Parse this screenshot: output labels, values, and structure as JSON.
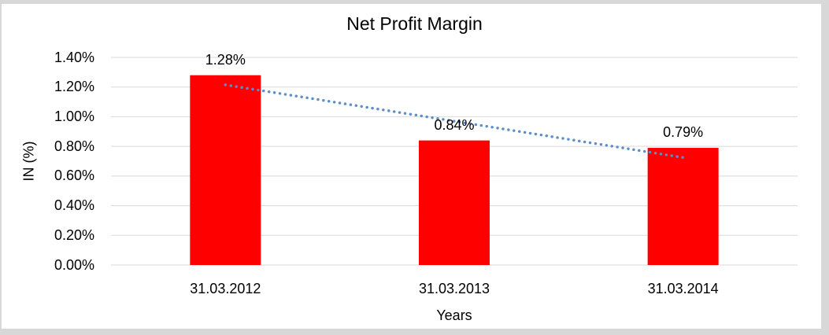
{
  "window": {
    "outer_background": "#d8d8d8",
    "chart_background": "#ffffff"
  },
  "chart_data": {
    "type": "bar",
    "title": "Net Profit Margin",
    "xlabel": "Years",
    "ylabel": "IN (%)",
    "categories": [
      "31.03.2012",
      "31.03.2013",
      "31.03.2014"
    ],
    "values": [
      1.28,
      0.84,
      0.79
    ],
    "data_labels": [
      "1.28%",
      "0.84%",
      "0.79%"
    ],
    "y_ticks": [
      "1.40%",
      "1.20%",
      "1.00%",
      "0.80%",
      "0.60%",
      "0.40%",
      "0.20%",
      "0.00%"
    ],
    "ylim": [
      0,
      1.4
    ],
    "y_step": 0.2,
    "grid": true,
    "legend": "none",
    "bar_color": "#ff0000",
    "gridline_color": "#d9d9d9",
    "trendline": {
      "type": "linear",
      "style": "dotted",
      "color": "#5b8fc9",
      "start_value": 1.215,
      "end_value": 0.725
    }
  }
}
